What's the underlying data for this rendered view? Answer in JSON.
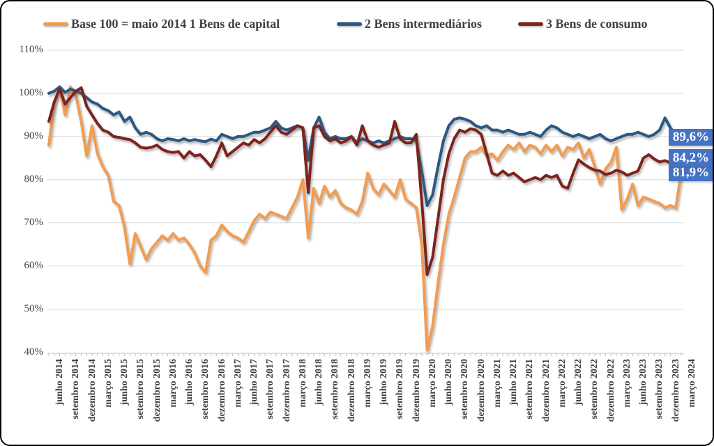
{
  "legend": {
    "items": [
      {
        "label": "Base 100 = maio 2014 1 Bens de capital",
        "color": "#F29C50"
      },
      {
        "label": "2 Bens intermediários",
        "color": "#2A5784"
      },
      {
        "label": "3 Bens de consumo",
        "color": "#7D231D"
      }
    ]
  },
  "chart_data": {
    "type": "line",
    "title": "",
    "xlabel": "",
    "ylabel": "",
    "x_unit": "month",
    "x_start": "junho 2014",
    "x_end": "março 2024",
    "n_points": 118,
    "x_tick_every": 3,
    "x_tick_labels": [
      "junho 2014",
      "setembro 2014",
      "dezembro 2014",
      "março 2015",
      "junho 2015",
      "setembro 2015",
      "dezembro 2015",
      "março 2016",
      "junho 2016",
      "setembro 2016",
      "dezembro 2016",
      "março 2017",
      "junho 2017",
      "setembro 2017",
      "dezembro 2017",
      "março 2018",
      "junho 2018",
      "setembro 2018",
      "dezembro 2018",
      "março 2019",
      "junho 2019",
      "setembro 2019",
      "dezembro 2019",
      "março 2020",
      "junho 2020",
      "setembro 2020",
      "dezembro 2020",
      "março 2021",
      "junho 2021",
      "setembro 2021",
      "dezembro 2021",
      "março 2022",
      "junho 2022",
      "setembro 2022",
      "dezembro 2022",
      "março 2023",
      "junho 2023",
      "setembro 2023",
      "dezembro 2023",
      "março 2024"
    ],
    "ylim": [
      40,
      110
    ],
    "y_tick_labels": [
      "110%",
      "100%",
      "90%",
      "80%",
      "70%",
      "60%",
      "50%",
      "40%"
    ],
    "grid": true,
    "legend_position": "top",
    "grid_color": "#D9D9D9",
    "axis_color": "#BFBFBF",
    "callout_bg": "#4472C4",
    "series": [
      {
        "name": "1 Bens de capital",
        "color": "#F29C50",
        "values": [
          88.0,
          97.5,
          101.5,
          95.0,
          101.5,
          99.5,
          93.5,
          85.5,
          92.5,
          86.0,
          83.0,
          81.0,
          75.0,
          74.0,
          69.0,
          60.5,
          67.5,
          64.5,
          61.5,
          64.0,
          65.5,
          67.0,
          66.0,
          67.5,
          66.0,
          66.5,
          65.0,
          63.0,
          60.0,
          58.5,
          66.0,
          67.0,
          69.5,
          68.0,
          67.0,
          66.5,
          65.5,
          68.0,
          70.5,
          72.0,
          71.0,
          72.5,
          72.0,
          71.5,
          71.0,
          73.5,
          76.0,
          80.0,
          66.5,
          78.0,
          74.5,
          78.5,
          76.0,
          77.5,
          74.5,
          73.5,
          73.0,
          72.0,
          75.0,
          81.5,
          78.0,
          76.5,
          79.0,
          77.5,
          76.0,
          80.0,
          75.5,
          74.5,
          73.5,
          65.0,
          40.5,
          46.0,
          56.0,
          65.0,
          72.0,
          76.0,
          80.5,
          85.0,
          86.5,
          86.5,
          87.5,
          85.5,
          86.0,
          84.5,
          86.5,
          88.0,
          87.0,
          88.5,
          86.5,
          88.0,
          87.5,
          86.0,
          88.0,
          86.5,
          88.0,
          85.5,
          87.5,
          87.0,
          88.5,
          85.0,
          87.0,
          83.0,
          79.0,
          82.5,
          84.0,
          87.5,
          73.0,
          75.5,
          79.0,
          74.0,
          76.0,
          75.5,
          75.0,
          74.5,
          73.5,
          74.0,
          73.5,
          81.9
        ]
      },
      {
        "name": "2 Bens intermediários",
        "color": "#2A5784",
        "values": [
          100.0,
          100.5,
          101.5,
          100.2,
          101.0,
          100.5,
          100.0,
          99.0,
          98.0,
          97.5,
          96.5,
          96.0,
          95.0,
          95.7,
          93.5,
          94.5,
          92.0,
          90.5,
          91.0,
          90.5,
          89.5,
          89.0,
          89.5,
          89.3,
          89.0,
          89.5,
          89.0,
          89.3,
          89.0,
          88.8,
          89.4,
          89.0,
          90.5,
          90.0,
          89.5,
          90.0,
          90.0,
          90.5,
          91.0,
          91.0,
          91.5,
          92.0,
          93.5,
          92.0,
          91.5,
          92.0,
          92.5,
          92.0,
          84.5,
          92.0,
          94.5,
          91.0,
          89.5,
          90.0,
          89.5,
          89.5,
          90.0,
          88.5,
          89.5,
          89.0,
          88.5,
          89.0,
          88.5,
          89.0,
          89.5,
          90.0,
          89.5,
          89.5,
          89.0,
          82.0,
          74.0,
          76.5,
          83.0,
          89.0,
          92.5,
          94.0,
          94.3,
          94.0,
          93.5,
          92.5,
          92.0,
          92.5,
          91.5,
          91.5,
          91.0,
          91.5,
          91.0,
          90.5,
          90.5,
          91.0,
          90.5,
          90.0,
          91.5,
          92.5,
          92.0,
          91.0,
          90.5,
          90.0,
          90.5,
          90.0,
          89.5,
          90.0,
          90.5,
          89.5,
          89.0,
          89.5,
          90.0,
          90.5,
          90.5,
          91.0,
          90.5,
          90.0,
          90.5,
          91.5,
          94.3,
          92.0,
          90.5,
          89.6
        ]
      },
      {
        "name": "3 Bens de consumo",
        "color": "#7D231D",
        "values": [
          93.5,
          98.0,
          101.0,
          97.5,
          99.0,
          100.5,
          101.3,
          97.0,
          95.0,
          93.0,
          91.5,
          91.0,
          90.0,
          89.8,
          89.5,
          89.3,
          88.5,
          87.5,
          87.3,
          87.5,
          88.0,
          87.0,
          86.5,
          86.3,
          86.5,
          85.0,
          86.5,
          85.5,
          85.8,
          84.5,
          83.0,
          85.5,
          88.5,
          85.5,
          86.5,
          87.5,
          88.5,
          88.0,
          89.3,
          88.5,
          89.5,
          91.0,
          92.5,
          91.0,
          90.5,
          91.5,
          92.5,
          92.0,
          77.0,
          92.0,
          92.5,
          90.0,
          89.0,
          89.5,
          88.5,
          89.0,
          90.0,
          88.0,
          92.5,
          89.0,
          88.0,
          87.5,
          88.0,
          88.5,
          93.5,
          89.5,
          88.5,
          88.5,
          90.5,
          75.0,
          58.0,
          62.0,
          71.0,
          80.0,
          86.0,
          89.5,
          91.5,
          91.0,
          91.8,
          91.5,
          90.5,
          86.0,
          81.5,
          81.0,
          82.0,
          81.0,
          81.5,
          80.5,
          79.5,
          80.0,
          80.5,
          80.0,
          81.0,
          80.5,
          81.0,
          78.5,
          78.0,
          81.5,
          84.6,
          83.6,
          82.8,
          82.2,
          82.0,
          81.2,
          81.5,
          82.2,
          81.8,
          81.0,
          81.5,
          82.0,
          85.0,
          85.8,
          84.8,
          84.1,
          84.4,
          83.9,
          84.0,
          84.2
        ]
      }
    ],
    "end_labels": [
      {
        "series": "2 Bens intermediários",
        "text": "89,6%"
      },
      {
        "series": "3 Bens de consumo",
        "text": "84,2%"
      },
      {
        "series": "1 Bens de capital",
        "text": "81,9%"
      }
    ]
  }
}
